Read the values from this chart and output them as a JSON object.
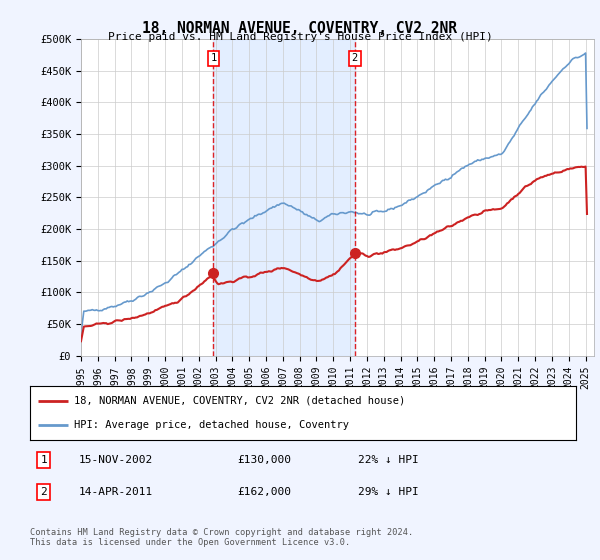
{
  "title": "18, NORMAN AVENUE, COVENTRY, CV2 2NR",
  "subtitle": "Price paid vs. HM Land Registry's House Price Index (HPI)",
  "ylim": [
    0,
    500000
  ],
  "yticks": [
    0,
    50000,
    100000,
    150000,
    200000,
    250000,
    300000,
    350000,
    400000,
    450000,
    500000
  ],
  "ytick_labels": [
    "£0",
    "£50K",
    "£100K",
    "£150K",
    "£200K",
    "£250K",
    "£300K",
    "£350K",
    "£400K",
    "£450K",
    "£500K"
  ],
  "xlim_start": 1995.0,
  "xlim_end": 2025.5,
  "hpi_color": "#6699cc",
  "price_color": "#cc2222",
  "sale1_x": 2002.87,
  "sale1_y": 130000,
  "sale2_x": 2011.28,
  "sale2_y": 162000,
  "legend_line1": "18, NORMAN AVENUE, COVENTRY, CV2 2NR (detached house)",
  "legend_line2": "HPI: Average price, detached house, Coventry",
  "table_row1_num": "1",
  "table_row1_date": "15-NOV-2002",
  "table_row1_price": "£130,000",
  "table_row1_hpi": "22% ↓ HPI",
  "table_row2_num": "2",
  "table_row2_date": "14-APR-2011",
  "table_row2_price": "£162,000",
  "table_row2_hpi": "29% ↓ HPI",
  "footnote": "Contains HM Land Registry data © Crown copyright and database right 2024.\nThis data is licensed under the Open Government Licence v3.0.",
  "background_color": "#f0f4ff",
  "plot_bg_color": "#ffffff",
  "hpi_anchors_x": [
    1995,
    1996,
    1997,
    1998,
    1999,
    2000,
    2001,
    2002,
    2003,
    2004,
    2005,
    2006,
    2007,
    2008,
    2009,
    2010,
    2011,
    2012,
    2013,
    2014,
    2015,
    2016,
    2017,
    2018,
    2019,
    2020,
    2021,
    2022,
    2023,
    2024,
    2025
  ],
  "hpi_anchors_y": [
    68000,
    73000,
    79000,
    88000,
    100000,
    115000,
    135000,
    158000,
    178000,
    200000,
    215000,
    230000,
    242000,
    228000,
    212000,
    223000,
    228000,
    222000,
    228000,
    238000,
    252000,
    268000,
    285000,
    302000,
    312000,
    318000,
    360000,
    400000,
    435000,
    465000,
    478000
  ],
  "price_anchors_x": [
    1995,
    1996,
    1997,
    1998,
    1999,
    2000,
    2001,
    2002.87,
    2003,
    2004,
    2005,
    2006,
    2007,
    2008,
    2009,
    2010,
    2011.28,
    2012,
    2013,
    2014,
    2015,
    2016,
    2017,
    2018,
    2019,
    2020,
    2021,
    2022,
    2023,
    2024,
    2025
  ],
  "price_anchors_y": [
    45000,
    49000,
    54000,
    59000,
    67000,
    77000,
    90000,
    130000,
    112000,
    118000,
    125000,
    132000,
    140000,
    128000,
    118000,
    128000,
    162000,
    158000,
    163000,
    170000,
    180000,
    193000,
    205000,
    220000,
    228000,
    233000,
    258000,
    278000,
    288000,
    295000,
    300000
  ]
}
